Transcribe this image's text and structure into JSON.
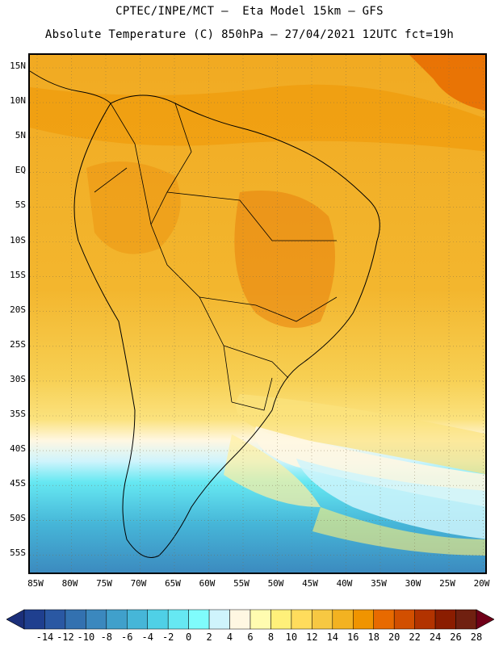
{
  "header": {
    "line1": "CPTEC/INPE/MCT –  Eta Model 15km – GFS",
    "line2": "Absolute Temperature (C) 850hPa – 27/04/2021 12UTC fct=19h"
  },
  "map": {
    "lat_labels": [
      "15N",
      "10N",
      "5N",
      "EQ",
      "5S",
      "10S",
      "15S",
      "20S",
      "25S",
      "30S",
      "35S",
      "40S",
      "45S",
      "50S",
      "55S"
    ],
    "lon_labels": [
      "85W",
      "80W",
      "75W",
      "70W",
      "65W",
      "60W",
      "55W",
      "50W",
      "45W",
      "40W",
      "35W",
      "30W",
      "25W",
      "20W"
    ],
    "gridlines": "dotted"
  },
  "colorbar": {
    "labels": [
      "-14",
      "-12",
      "-10",
      "-8",
      "-6",
      "-4",
      "-2",
      "0",
      "2",
      "4",
      "6",
      "8",
      "10",
      "12",
      "14",
      "16",
      "18",
      "20",
      "22",
      "24",
      "26",
      "28"
    ],
    "colors": [
      "#1f3f8f",
      "#2a58a3",
      "#3371b0",
      "#3b88be",
      "#40a0cb",
      "#46b6d8",
      "#4fd0e6",
      "#66e8f2",
      "#7ffcfc",
      "#cff4fc",
      "#fff7e2",
      "#fffcb0",
      "#fff07a",
      "#ffdc5c",
      "#f7c842",
      "#f3b221",
      "#f09400",
      "#e86a00",
      "#d24f00",
      "#b23300",
      "#8b1d00",
      "#702010"
    ],
    "low_arrow_color": "#1b2f7a",
    "high_arrow_color": "#700018"
  }
}
